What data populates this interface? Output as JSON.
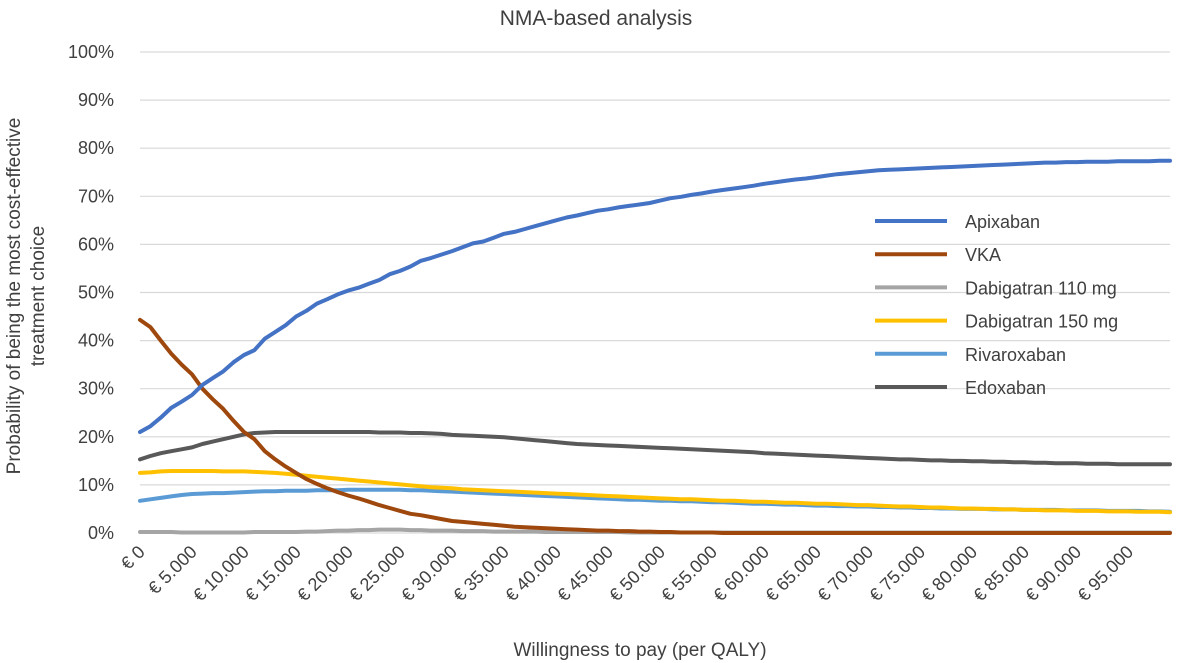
{
  "chart_data": {
    "type": "line",
    "title": "NMA-based analysis",
    "xlabel": "Willingness to pay (per QALY)",
    "ylabel_lines": [
      "Probability of being the most cost-effective",
      "treatment choice"
    ],
    "x": [
      0,
      1000,
      2000,
      3000,
      4000,
      5000,
      6000,
      7000,
      8000,
      9000,
      10000,
      11000,
      12000,
      13000,
      14000,
      15000,
      16000,
      17000,
      18000,
      19000,
      20000,
      21000,
      22000,
      23000,
      24000,
      25000,
      26000,
      27000,
      28000,
      29000,
      30000,
      31000,
      32000,
      33000,
      34000,
      35000,
      36000,
      37000,
      38000,
      39000,
      40000,
      41000,
      42000,
      43000,
      44000,
      45000,
      46000,
      47000,
      48000,
      49000,
      50000,
      51000,
      52000,
      53000,
      54000,
      55000,
      56000,
      57000,
      58000,
      59000,
      60000,
      61000,
      62000,
      63000,
      64000,
      65000,
      66000,
      67000,
      68000,
      69000,
      70000,
      71000,
      72000,
      73000,
      74000,
      75000,
      76000,
      77000,
      78000,
      79000,
      80000,
      81000,
      82000,
      83000,
      84000,
      85000,
      86000,
      87000,
      88000,
      89000,
      90000,
      91000,
      92000,
      93000,
      94000,
      95000,
      96000,
      97000,
      98000,
      99000
    ],
    "x_tick_labels": [
      "€ 0",
      "€ 5.000",
      "€ 10.000",
      "€ 15.000",
      "€ 20.000",
      "€ 25.000",
      "€ 30.000",
      "€ 35.000",
      "€ 40.000",
      "€ 45.000",
      "€ 50.000",
      "€ 55.000",
      "€ 60.000",
      "€ 65.000",
      "€ 70.000",
      "€ 75.000",
      "€ 80.000",
      "€ 85.000",
      "€ 90.000",
      "€ 95.000"
    ],
    "x_tick_values": [
      0,
      5000,
      10000,
      15000,
      20000,
      25000,
      30000,
      35000,
      40000,
      45000,
      50000,
      55000,
      60000,
      65000,
      70000,
      75000,
      80000,
      85000,
      90000,
      95000
    ],
    "y_tick_labels": [
      "0%",
      "10%",
      "20%",
      "30%",
      "40%",
      "50%",
      "60%",
      "70%",
      "80%",
      "90%",
      "100%"
    ],
    "ylim": [
      0,
      100
    ],
    "xlim": [
      0,
      99000
    ],
    "grid": true,
    "legend_position": "right",
    "series": [
      {
        "name": "Apixaban",
        "color": "#4472c4",
        "values": [
          21.0,
          22.2,
          24.0,
          26.0,
          27.3,
          28.7,
          30.8,
          32.2,
          33.6,
          35.5,
          37.0,
          38.0,
          40.4,
          41.8,
          43.2,
          45.0,
          46.2,
          47.7,
          48.6,
          49.6,
          50.4,
          51.0,
          51.8,
          52.6,
          53.8,
          54.5,
          55.4,
          56.6,
          57.2,
          57.9,
          58.6,
          59.4,
          60.2,
          60.6,
          61.4,
          62.2,
          62.6,
          63.2,
          63.8,
          64.4,
          65.0,
          65.6,
          66.0,
          66.5,
          67.0,
          67.3,
          67.7,
          68.0,
          68.3,
          68.6,
          69.1,
          69.6,
          69.9,
          70.3,
          70.6,
          71.0,
          71.3,
          71.6,
          71.9,
          72.2,
          72.6,
          72.9,
          73.2,
          73.5,
          73.7,
          74.0,
          74.3,
          74.6,
          74.8,
          75.0,
          75.2,
          75.4,
          75.5,
          75.6,
          75.7,
          75.8,
          75.9,
          76.0,
          76.1,
          76.2,
          76.3,
          76.4,
          76.5,
          76.6,
          76.7,
          76.8,
          76.9,
          77.0,
          77.0,
          77.1,
          77.1,
          77.2,
          77.2,
          77.2,
          77.3,
          77.3,
          77.3,
          77.3,
          77.4,
          77.4
        ]
      },
      {
        "name": "VKA",
        "color": "#9e480e",
        "values": [
          44.3,
          42.8,
          40.0,
          37.3,
          35.0,
          33.0,
          30.0,
          27.8,
          25.8,
          23.3,
          21.0,
          19.5,
          17.0,
          15.3,
          13.8,
          12.5,
          11.2,
          10.2,
          9.3,
          8.5,
          7.8,
          7.2,
          6.5,
          5.8,
          5.2,
          4.6,
          4.0,
          3.7,
          3.3,
          2.9,
          2.5,
          2.3,
          2.1,
          1.9,
          1.7,
          1.5,
          1.3,
          1.2,
          1.1,
          1.0,
          0.9,
          0.8,
          0.7,
          0.6,
          0.5,
          0.5,
          0.4,
          0.4,
          0.3,
          0.3,
          0.2,
          0.2,
          0.1,
          0.1,
          0.1,
          0.1,
          0.0,
          0.0,
          0.0,
          0.0,
          0.0,
          0.0,
          0.0,
          0.0,
          0.0,
          0.0,
          0.0,
          0.0,
          0.0,
          0.0,
          0.0,
          0.0,
          0.0,
          0.0,
          0.0,
          0.0,
          0.0,
          0.0,
          0.0,
          0.0,
          0.0,
          0.0,
          0.0,
          0.0,
          0.0,
          0.0,
          0.0,
          0.0,
          0.0,
          0.0,
          0.0,
          0.0,
          0.0,
          0.0,
          0.0,
          0.0,
          0.0,
          0.0,
          0.0,
          0.0
        ]
      },
      {
        "name": "Dabigatran 110 mg",
        "color": "#a5a5a5",
        "values": [
          0.2,
          0.2,
          0.2,
          0.2,
          0.1,
          0.1,
          0.1,
          0.1,
          0.1,
          0.1,
          0.1,
          0.2,
          0.2,
          0.2,
          0.2,
          0.2,
          0.3,
          0.3,
          0.4,
          0.5,
          0.5,
          0.6,
          0.6,
          0.7,
          0.7,
          0.7,
          0.6,
          0.6,
          0.5,
          0.5,
          0.5,
          0.4,
          0.4,
          0.4,
          0.3,
          0.3,
          0.3,
          0.3,
          0.3,
          0.2,
          0.2,
          0.2,
          0.2,
          0.2,
          0.2,
          0.2,
          0.2,
          0.1,
          0.1,
          0.1,
          0.1,
          0.1,
          0.1,
          0.1,
          0.1,
          0.1,
          0.1,
          0.1,
          0.1,
          0.1,
          0.1,
          0.1,
          0.1,
          0.1,
          0.1,
          0.1,
          0.1,
          0.1,
          0.1,
          0.1,
          0.1,
          0.1,
          0.1,
          0.1,
          0.1,
          0.1,
          0.1,
          0.1,
          0.1,
          0.1,
          0.1,
          0.1,
          0.1,
          0.1,
          0.1,
          0.1,
          0.1,
          0.1,
          0.1,
          0.1,
          0.1,
          0.1,
          0.1,
          0.1,
          0.1,
          0.1,
          0.1,
          0.1,
          0.1,
          0.1
        ]
      },
      {
        "name": "Dabigatran 150 mg",
        "color": "#ffc000",
        "values": [
          12.5,
          12.6,
          12.8,
          12.9,
          12.9,
          12.9,
          12.9,
          12.9,
          12.8,
          12.8,
          12.8,
          12.7,
          12.6,
          12.5,
          12.3,
          12.1,
          11.9,
          11.7,
          11.5,
          11.3,
          11.1,
          10.9,
          10.7,
          10.5,
          10.3,
          10.1,
          9.9,
          9.7,
          9.5,
          9.4,
          9.3,
          9.1,
          9.0,
          8.9,
          8.8,
          8.7,
          8.6,
          8.5,
          8.4,
          8.3,
          8.2,
          8.1,
          8.0,
          7.9,
          7.8,
          7.7,
          7.6,
          7.5,
          7.4,
          7.3,
          7.2,
          7.1,
          7.0,
          7.0,
          6.9,
          6.8,
          6.7,
          6.7,
          6.6,
          6.5,
          6.5,
          6.4,
          6.3,
          6.3,
          6.2,
          6.1,
          6.1,
          6.0,
          5.9,
          5.8,
          5.8,
          5.7,
          5.6,
          5.5,
          5.5,
          5.4,
          5.3,
          5.3,
          5.2,
          5.1,
          5.1,
          5.0,
          5.0,
          4.9,
          4.9,
          4.8,
          4.8,
          4.7,
          4.7,
          4.7,
          4.6,
          4.6,
          4.6,
          4.5,
          4.5,
          4.5,
          4.4,
          4.4,
          4.4,
          4.3
        ]
      },
      {
        "name": "Rivaroxaban",
        "color": "#5b9bd5",
        "values": [
          6.7,
          7.0,
          7.3,
          7.6,
          7.9,
          8.1,
          8.2,
          8.3,
          8.3,
          8.4,
          8.5,
          8.6,
          8.7,
          8.7,
          8.8,
          8.8,
          8.8,
          8.9,
          8.9,
          8.9,
          9.0,
          9.0,
          9.0,
          9.0,
          9.0,
          9.0,
          8.9,
          8.9,
          8.8,
          8.7,
          8.6,
          8.5,
          8.4,
          8.3,
          8.2,
          8.1,
          8.0,
          7.9,
          7.8,
          7.7,
          7.6,
          7.5,
          7.4,
          7.3,
          7.2,
          7.1,
          7.0,
          6.9,
          6.9,
          6.8,
          6.7,
          6.7,
          6.6,
          6.6,
          6.5,
          6.4,
          6.4,
          6.3,
          6.2,
          6.1,
          6.1,
          6.0,
          5.9,
          5.9,
          5.8,
          5.7,
          5.7,
          5.6,
          5.6,
          5.5,
          5.5,
          5.4,
          5.4,
          5.3,
          5.3,
          5.2,
          5.2,
          5.1,
          5.1,
          5.0,
          5.0,
          5.0,
          4.9,
          4.9,
          4.9,
          4.8,
          4.8,
          4.8,
          4.8,
          4.7,
          4.7,
          4.7,
          4.7,
          4.6,
          4.6,
          4.6,
          4.6,
          4.5,
          4.5,
          4.4
        ]
      },
      {
        "name": "Edoxaban",
        "color": "#595959",
        "values": [
          15.3,
          16.0,
          16.6,
          17.0,
          17.4,
          17.8,
          18.5,
          19.0,
          19.5,
          20.0,
          20.5,
          20.8,
          20.9,
          21.0,
          21.0,
          21.0,
          21.0,
          21.0,
          21.0,
          21.0,
          21.0,
          21.0,
          21.0,
          20.9,
          20.9,
          20.9,
          20.8,
          20.8,
          20.7,
          20.6,
          20.4,
          20.3,
          20.2,
          20.1,
          20.0,
          19.9,
          19.7,
          19.5,
          19.3,
          19.1,
          18.9,
          18.7,
          18.5,
          18.4,
          18.3,
          18.2,
          18.1,
          18.0,
          17.9,
          17.8,
          17.7,
          17.6,
          17.5,
          17.4,
          17.3,
          17.2,
          17.1,
          17.0,
          16.9,
          16.8,
          16.6,
          16.5,
          16.4,
          16.3,
          16.2,
          16.1,
          16.0,
          15.9,
          15.8,
          15.7,
          15.6,
          15.5,
          15.4,
          15.3,
          15.3,
          15.2,
          15.1,
          15.1,
          15.0,
          15.0,
          14.9,
          14.9,
          14.8,
          14.8,
          14.7,
          14.7,
          14.6,
          14.6,
          14.5,
          14.5,
          14.5,
          14.4,
          14.4,
          14.4,
          14.3,
          14.3,
          14.3,
          14.3,
          14.3,
          14.3
        ]
      }
    ]
  }
}
